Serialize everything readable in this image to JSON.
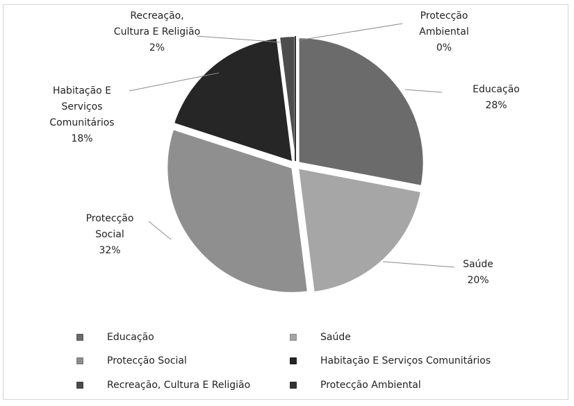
{
  "chart_data": {
    "type": "pie",
    "title": "",
    "slices": [
      {
        "name": "Educação",
        "value": 28,
        "label_lines": [
          "Educação",
          "28%"
        ],
        "color": "#6b6b6b"
      },
      {
        "name": "Saúde",
        "value": 20,
        "label_lines": [
          "Saúde",
          "20%"
        ],
        "color": "#a6a6a6"
      },
      {
        "name": "Protecção Social",
        "value": 32,
        "label_lines": [
          "Protecção",
          "Social",
          "32%"
        ],
        "color": "#8f8f8f"
      },
      {
        "name": "Habitação E Serviços Comunitários",
        "value": 18,
        "label_lines": [
          "Habitação E",
          "Serviços",
          "Comunitários",
          "18%"
        ],
        "color": "#262626"
      },
      {
        "name": "Recreação, Cultura E Religião",
        "value": 2,
        "label_lines": [
          "Recreação,",
          "Cultura E Religião",
          "2%"
        ],
        "color": "#4d4d4d"
      },
      {
        "name": "Protecção Ambiental",
        "value": 0,
        "label_lines": [
          "Protecção",
          "Ambiental",
          "0%"
        ],
        "color": "#333333"
      }
    ],
    "legend": {
      "placement": "bottom",
      "entries": [
        "Educação",
        "Saúde",
        "Protecção Social",
        "Habitação E Serviços Comunitários",
        "Recreação, Cultura E Religião",
        "Protecção Ambiental"
      ]
    }
  }
}
